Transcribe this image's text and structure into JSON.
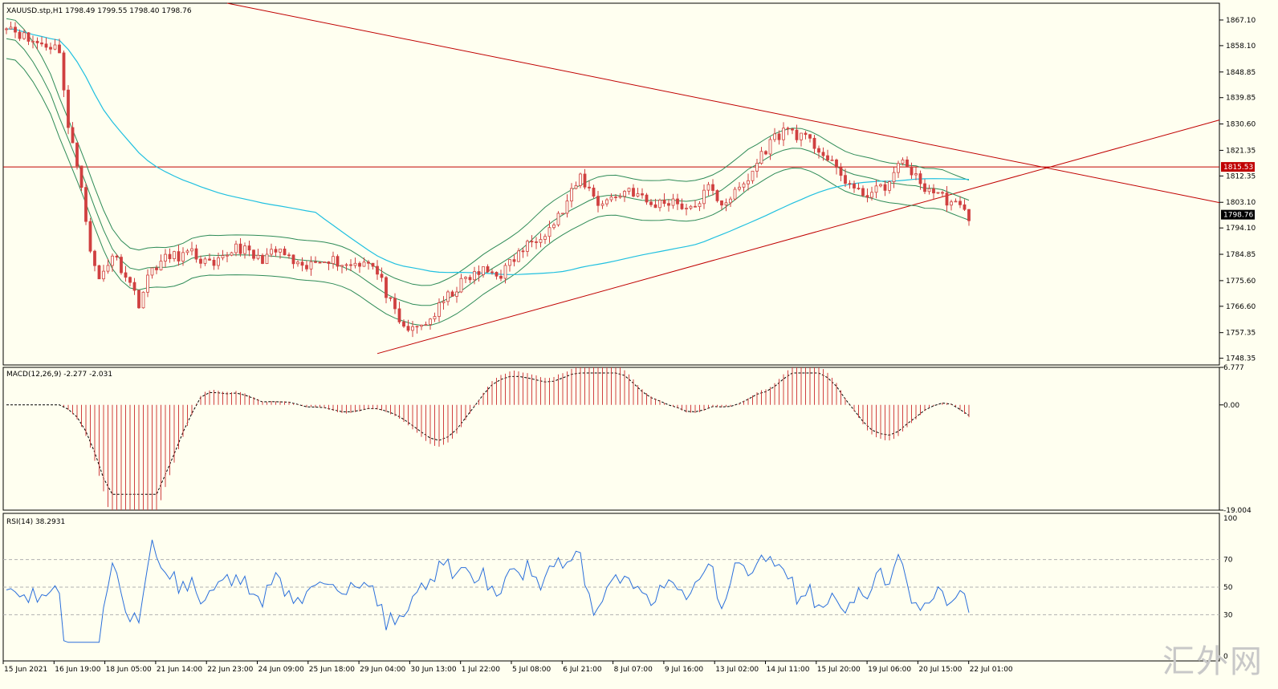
{
  "chart_data": {
    "type": "candlestick",
    "symbol_header": "XAUUSD.stp,H1  1798.49 1799.55 1798.40 1798.76",
    "price_axis": {
      "ticks": [
        "1867.10",
        "1858.10",
        "1848.85",
        "1839.85",
        "1830.60",
        "1821.35",
        "1812.35",
        "1803.10",
        "1794.10",
        "1784.85",
        "1775.60",
        "1766.60",
        "1757.35",
        "1748.35"
      ],
      "ylim": [
        1746,
        1873
      ],
      "current_price": "1798.76",
      "horizontal_level": "1815.53"
    },
    "time_axis": [
      "15 Jun 2021",
      "16 Jun 19:00",
      "18 Jun 05:00",
      "21 Jun 14:00",
      "22 Jun 23:00",
      "24 Jun 09:00",
      "25 Jun 18:00",
      "29 Jun 04:00",
      "30 Jun 13:00",
      "1 Jul 22:00",
      "5 Jul 08:00",
      "6 Jul 21:00",
      "8 Jul 07:00",
      "9 Jul 16:00",
      "13 Jul 02:00",
      "14 Jul 11:00",
      "15 Jul 20:00",
      "19 Jul 06:00",
      "20 Jul 15:00",
      "22 Jul 01:00"
    ],
    "price_path": [
      [
        0,
        1866
      ],
      [
        5,
        1860
      ],
      [
        10,
        1858
      ],
      [
        12,
        1857
      ],
      [
        14,
        1829
      ],
      [
        17,
        1810
      ],
      [
        19,
        1785
      ],
      [
        21,
        1776
      ],
      [
        24,
        1785
      ],
      [
        27,
        1778
      ],
      [
        30,
        1768
      ],
      [
        33,
        1780
      ],
      [
        37,
        1784
      ],
      [
        42,
        1785
      ],
      [
        47,
        1780
      ],
      [
        52,
        1788
      ],
      [
        57,
        1783
      ],
      [
        62,
        1786
      ],
      [
        67,
        1779
      ],
      [
        72,
        1784
      ],
      [
        77,
        1781
      ],
      [
        82,
        1783
      ],
      [
        85,
        1775
      ],
      [
        89,
        1760
      ],
      [
        92,
        1758
      ],
      [
        96,
        1762
      ],
      [
        100,
        1770
      ],
      [
        104,
        1776
      ],
      [
        108,
        1779
      ],
      [
        112,
        1778
      ],
      [
        116,
        1785
      ],
      [
        120,
        1791
      ],
      [
        123,
        1794
      ],
      [
        126,
        1800
      ],
      [
        130,
        1812
      ],
      [
        134,
        1803
      ],
      [
        138,
        1805
      ],
      [
        141,
        1808
      ],
      [
        146,
        1802
      ],
      [
        151,
        1804
      ],
      [
        155,
        1800
      ],
      [
        159,
        1808
      ],
      [
        162,
        1803
      ],
      [
        165,
        1806
      ],
      [
        168,
        1811
      ],
      [
        171,
        1820
      ],
      [
        174,
        1826
      ],
      [
        177,
        1829
      ],
      [
        181,
        1825
      ],
      [
        184,
        1822
      ],
      [
        187,
        1816
      ],
      [
        190,
        1811
      ],
      [
        193,
        1806
      ],
      [
        197,
        1807
      ],
      [
        200,
        1810
      ],
      [
        203,
        1818
      ],
      [
        205,
        1814
      ],
      [
        207,
        1809
      ],
      [
        210,
        1807
      ],
      [
        213,
        1804
      ],
      [
        216,
        1801
      ],
      [
        218,
        1798
      ]
    ],
    "indicators": {
      "macd": {
        "label": "MACD(12,26,9) -2.277 -2.031",
        "ticks": [
          "6.777",
          "0.00",
          "-19.004"
        ],
        "ylim": [
          -19.004,
          6.777
        ]
      },
      "rsi": {
        "label": "RSI(14) 38.2931",
        "ticks": [
          "100",
          "70",
          "50",
          "30",
          "0"
        ],
        "levels": [
          70,
          50,
          30
        ]
      }
    },
    "colors": {
      "background": "#fffff0",
      "candle": "#d04040",
      "bollinger": "#2e8b57",
      "ma": "#20c0e0",
      "trendline": "#c00000",
      "macd_hist": "#d04040",
      "rsi": "#2a6fdb"
    }
  },
  "watermark": "汇外网"
}
